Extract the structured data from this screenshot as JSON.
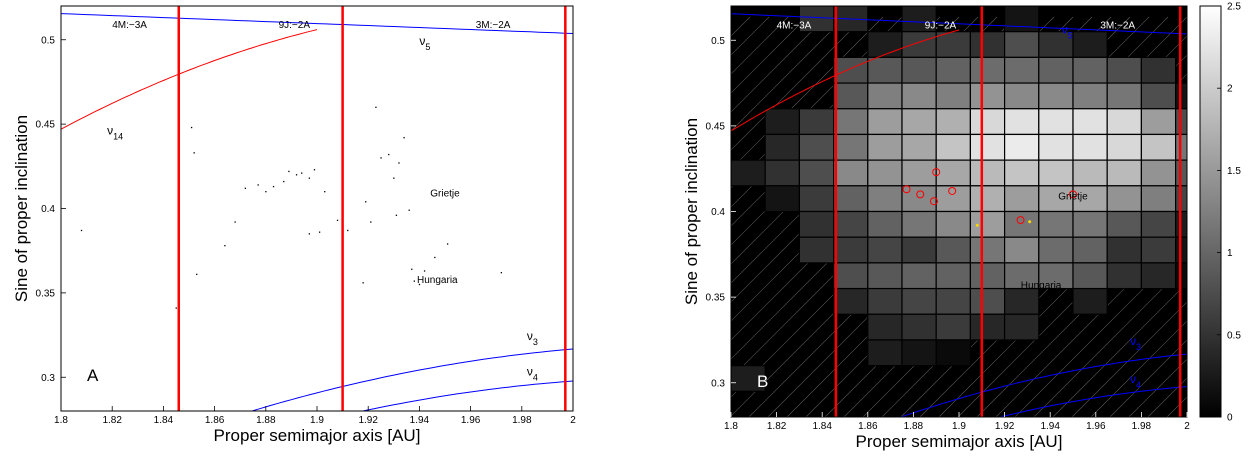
{
  "chart_data": [
    {
      "type": "scatter",
      "panel_label": "A",
      "xlabel": "Proper semimajor axis [AU]",
      "ylabel": "Sine of proper inclination",
      "xlim": [
        1.8,
        2.0
      ],
      "ylim": [
        0.28,
        0.52
      ],
      "xticks": [
        "1.8",
        "1.82",
        "1.84",
        "1.86",
        "1.88",
        "1.9",
        "1.92",
        "1.94",
        "1.96",
        "1.98",
        "2"
      ],
      "yticks": [
        "0.3",
        "0.35",
        "0.4",
        "0.45",
        "0.5"
      ],
      "resonances": [
        {
          "label": "4M:−3A",
          "a": 1.846
        },
        {
          "label": "9J:−2A",
          "a": 1.91
        },
        {
          "label": "3M:−2A",
          "a": 1.997
        }
      ],
      "secular_labels": [
        {
          "name": "ν",
          "sub": "5"
        },
        {
          "name": "ν",
          "sub": "14"
        },
        {
          "name": "ν",
          "sub": "3"
        },
        {
          "name": "ν",
          "sub": "4"
        }
      ],
      "annotations": [
        "Grietje",
        "Hungaria"
      ],
      "points": [
        [
          1.808,
          0.387
        ],
        [
          1.851,
          0.448
        ],
        [
          1.852,
          0.433
        ],
        [
          1.853,
          0.361
        ],
        [
          1.845,
          0.341
        ],
        [
          1.868,
          0.392
        ],
        [
          1.872,
          0.412
        ],
        [
          1.877,
          0.414
        ],
        [
          1.883,
          0.413
        ],
        [
          1.887,
          0.416
        ],
        [
          1.889,
          0.422
        ],
        [
          1.892,
          0.42
        ],
        [
          1.894,
          0.421
        ],
        [
          1.897,
          0.418
        ],
        [
          1.899,
          0.423
        ],
        [
          1.903,
          0.41
        ],
        [
          1.908,
          0.393
        ],
        [
          1.912,
          0.387
        ],
        [
          1.919,
          0.404
        ],
        [
          1.921,
          0.392
        ],
        [
          1.923,
          0.46
        ],
        [
          1.925,
          0.43
        ],
        [
          1.928,
          0.432
        ],
        [
          1.93,
          0.418
        ],
        [
          1.931,
          0.396
        ],
        [
          1.932,
          0.427
        ],
        [
          1.934,
          0.442
        ],
        [
          1.936,
          0.399
        ],
        [
          1.937,
          0.364
        ],
        [
          1.938,
          0.357
        ],
        [
          1.94,
          0.355
        ],
        [
          1.942,
          0.363
        ],
        [
          1.946,
          0.371
        ],
        [
          1.951,
          0.379
        ],
        [
          1.972,
          0.362
        ],
        [
          1.901,
          0.386
        ],
        [
          1.897,
          0.385
        ],
        [
          1.918,
          0.356
        ],
        [
          1.88,
          0.41
        ],
        [
          1.864,
          0.378
        ]
      ]
    },
    {
      "type": "heatmap",
      "panel_label": "B",
      "xlabel": "Proper semimajor axis [AU]",
      "ylabel": "Sine of proper inclination",
      "xlim": [
        1.8,
        2.0
      ],
      "ylim": [
        0.28,
        0.52
      ],
      "xticks": [
        "1.8",
        "1.82",
        "1.84",
        "1.86",
        "1.88",
        "1.9",
        "1.92",
        "1.94",
        "1.96",
        "1.98",
        "2"
      ],
      "yticks": [
        "0.3",
        "0.35",
        "0.4",
        "0.45",
        "0.5"
      ],
      "cell": {
        "dx": 0.015,
        "dy": 0.015,
        "x0": 1.8,
        "y0": 0.28
      },
      "colorbar": {
        "min": 0,
        "max": 2.5,
        "ticks": [
          "0",
          "0.5",
          "1",
          "1.5",
          "2",
          "2.5"
        ]
      },
      "resonances": [
        {
          "label": "4M:−3A",
          "a": 1.846
        },
        {
          "label": "9J:−2A",
          "a": 1.91
        },
        {
          "label": "3M:−2A",
          "a": 1.997
        }
      ],
      "secular_labels": [
        {
          "name": "ν",
          "sub": "5"
        },
        {
          "name": "ν",
          "sub": "3"
        },
        {
          "name": "ν",
          "sub": "4"
        }
      ],
      "annotations": [
        "Grietje",
        "Hungaria"
      ],
      "grid_values": [
        [
          0,
          0,
          0.5,
          0.4,
          0,
          0.3,
          0,
          0,
          0.2,
          0,
          0,
          0,
          0,
          0
        ],
        [
          0,
          0,
          0,
          0,
          0.3,
          0.6,
          0.6,
          0.5,
          0.8,
          0.5,
          0.3,
          0,
          0,
          0
        ],
        [
          0,
          0,
          0,
          0.8,
          0.9,
          0.9,
          1.0,
          1.1,
          1.1,
          1.0,
          1.0,
          0.8,
          0.5,
          0
        ],
        [
          0,
          0,
          0,
          0.9,
          1.3,
          1.4,
          1.3,
          1.5,
          1.4,
          1.4,
          1.3,
          1.2,
          0.8,
          0.2
        ],
        [
          0,
          0.3,
          0.6,
          1.2,
          1.6,
          1.7,
          1.8,
          2.2,
          2.3,
          2.3,
          2.3,
          2.2,
          1.6,
          0.8
        ],
        [
          0,
          0.4,
          0.8,
          1.2,
          1.6,
          1.7,
          2.0,
          2.3,
          2.4,
          2.3,
          2.3,
          2.2,
          2.0,
          1.2
        ],
        [
          0.3,
          0.5,
          0.8,
          1.4,
          1.5,
          1.6,
          1.7,
          1.9,
          2.0,
          2.0,
          1.9,
          1.9,
          1.5,
          0.9
        ],
        [
          0,
          0.2,
          0.6,
          1.0,
          1.3,
          1.4,
          1.6,
          1.8,
          1.6,
          1.7,
          1.7,
          1.5,
          1.3,
          0.7
        ],
        [
          0,
          0,
          0.5,
          0.7,
          1.0,
          1.2,
          1.4,
          1.6,
          1.2,
          1.2,
          1.2,
          0.9,
          0.7,
          0.3
        ],
        [
          0,
          0,
          0.5,
          0.6,
          0.7,
          0.6,
          0.9,
          1.2,
          1.4,
          1.1,
          1.0,
          0.5,
          0.6,
          0.2
        ],
        [
          0,
          0,
          0,
          0.8,
          0.9,
          1.0,
          1.0,
          1.0,
          1.1,
          1.1,
          0.9,
          0.5,
          0.4,
          0.1
        ],
        [
          0,
          0,
          0,
          0.4,
          0.6,
          0.7,
          0.7,
          0.8,
          0.4,
          0,
          0.3,
          0,
          0,
          0
        ],
        [
          0,
          0,
          0,
          0,
          0.4,
          0.5,
          0.6,
          0.4,
          0.4,
          0,
          0,
          0,
          0,
          0
        ],
        [
          0,
          0,
          0,
          0,
          0.3,
          0.2,
          0.1,
          0,
          0,
          0,
          0,
          0,
          0,
          0
        ],
        [
          0.3,
          0,
          0,
          0,
          0,
          0,
          0,
          0,
          0,
          0,
          0,
          0,
          0,
          0
        ]
      ],
      "circles": [
        [
          1.877,
          0.413
        ],
        [
          1.883,
          0.41
        ],
        [
          1.89,
          0.423
        ],
        [
          1.897,
          0.412
        ],
        [
          1.889,
          0.406
        ],
        [
          1.927,
          0.395
        ],
        [
          1.95,
          0.41
        ]
      ],
      "yellow_points": [
        [
          1.908,
          0.392
        ],
        [
          1.931,
          0.394
        ]
      ]
    }
  ]
}
